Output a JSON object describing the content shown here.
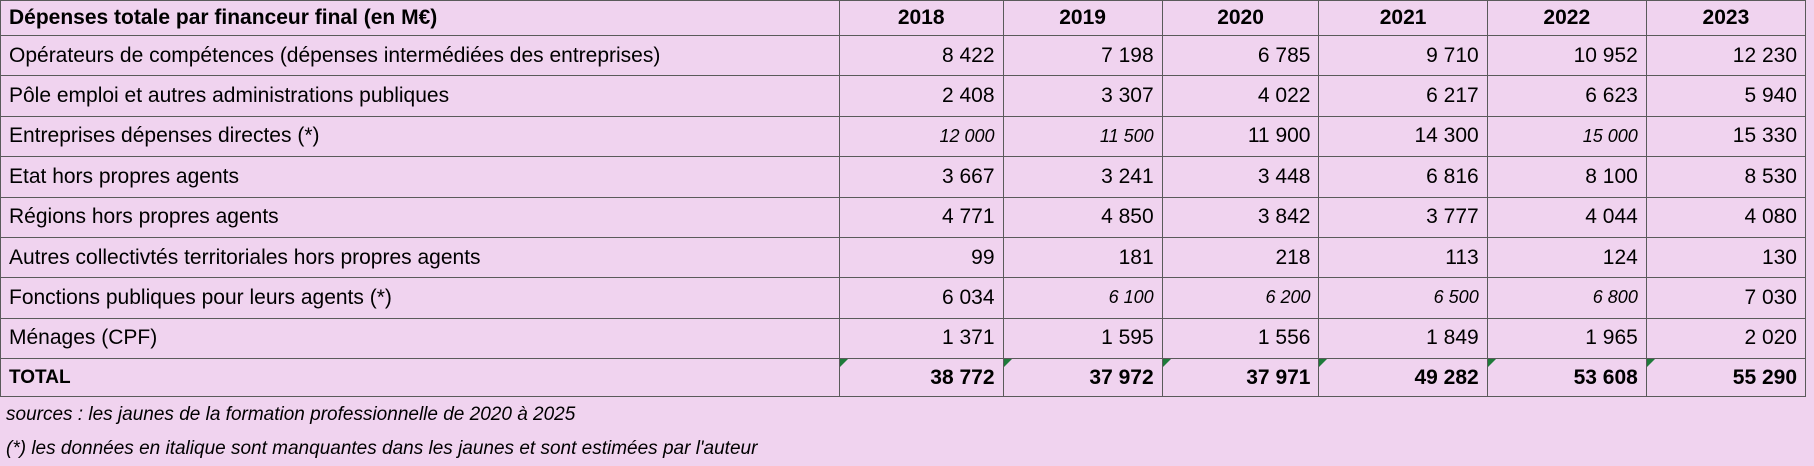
{
  "table": {
    "header_label": "Dépenses totale par financeur final (en M€)",
    "years": [
      "2018",
      "2019",
      "2020",
      "2021",
      "2022",
      "2023"
    ],
    "rows": [
      {
        "label": "Opérateurs de compétences (dépenses intermédiées des entreprises)",
        "values": [
          "8 422",
          "7 198",
          "6 785",
          "9 710",
          "10 952",
          "12 230"
        ],
        "italic": [
          false,
          false,
          false,
          false,
          false,
          false
        ]
      },
      {
        "label": "Pôle emploi et autres administrations publiques",
        "values": [
          "2 408",
          "3 307",
          "4 022",
          "6 217",
          "6 623",
          "5 940"
        ],
        "italic": [
          false,
          false,
          false,
          false,
          false,
          false
        ]
      },
      {
        "label": "Entreprises dépenses directes (*)",
        "values": [
          "12 000",
          "11 500",
          "11 900",
          "14 300",
          "15 000",
          "15 330"
        ],
        "italic": [
          true,
          true,
          false,
          false,
          true,
          false
        ]
      },
      {
        "label": "Etat hors propres agents",
        "values": [
          "3 667",
          "3 241",
          "3 448",
          "6 816",
          "8 100",
          "8 530"
        ],
        "italic": [
          false,
          false,
          false,
          false,
          false,
          false
        ]
      },
      {
        "label": "Régions hors propres agents",
        "values": [
          "4 771",
          "4 850",
          "3 842",
          "3 777",
          "4 044",
          "4 080"
        ],
        "italic": [
          false,
          false,
          false,
          false,
          false,
          false
        ]
      },
      {
        "label": "Autres collectivtés territoriales hors propres agents",
        "values": [
          "99",
          "181",
          "218",
          "113",
          "124",
          "130"
        ],
        "italic": [
          false,
          false,
          false,
          false,
          false,
          false
        ]
      },
      {
        "label": "Fonctions publiques pour leurs agents (*)",
        "values": [
          "6 034",
          "6 100",
          "6 200",
          "6 500",
          "6 800",
          "7 030"
        ],
        "italic": [
          false,
          true,
          true,
          true,
          true,
          false
        ]
      },
      {
        "label": "Ménages (CPF)",
        "values": [
          "1 371",
          "1 595",
          "1 556",
          "1 849",
          "1 965",
          "2 020"
        ],
        "italic": [
          false,
          false,
          false,
          false,
          false,
          false
        ]
      }
    ],
    "total": {
      "label": "TOTAL",
      "values": [
        "38 772",
        "37 972",
        "37 971",
        "49 282",
        "53 608",
        "55 290"
      ]
    }
  },
  "notes": {
    "sources": "sources : les jaunes de la formation professionnelle de 2020 à 2025",
    "italic_note": "(*) les données en italique sont manquantes dans les jaunes et sont estimées par l'auteur"
  },
  "colors": {
    "background": "#f0d3ef",
    "border": "#5a5a5a",
    "cell_marker": "#1e7a3a"
  }
}
